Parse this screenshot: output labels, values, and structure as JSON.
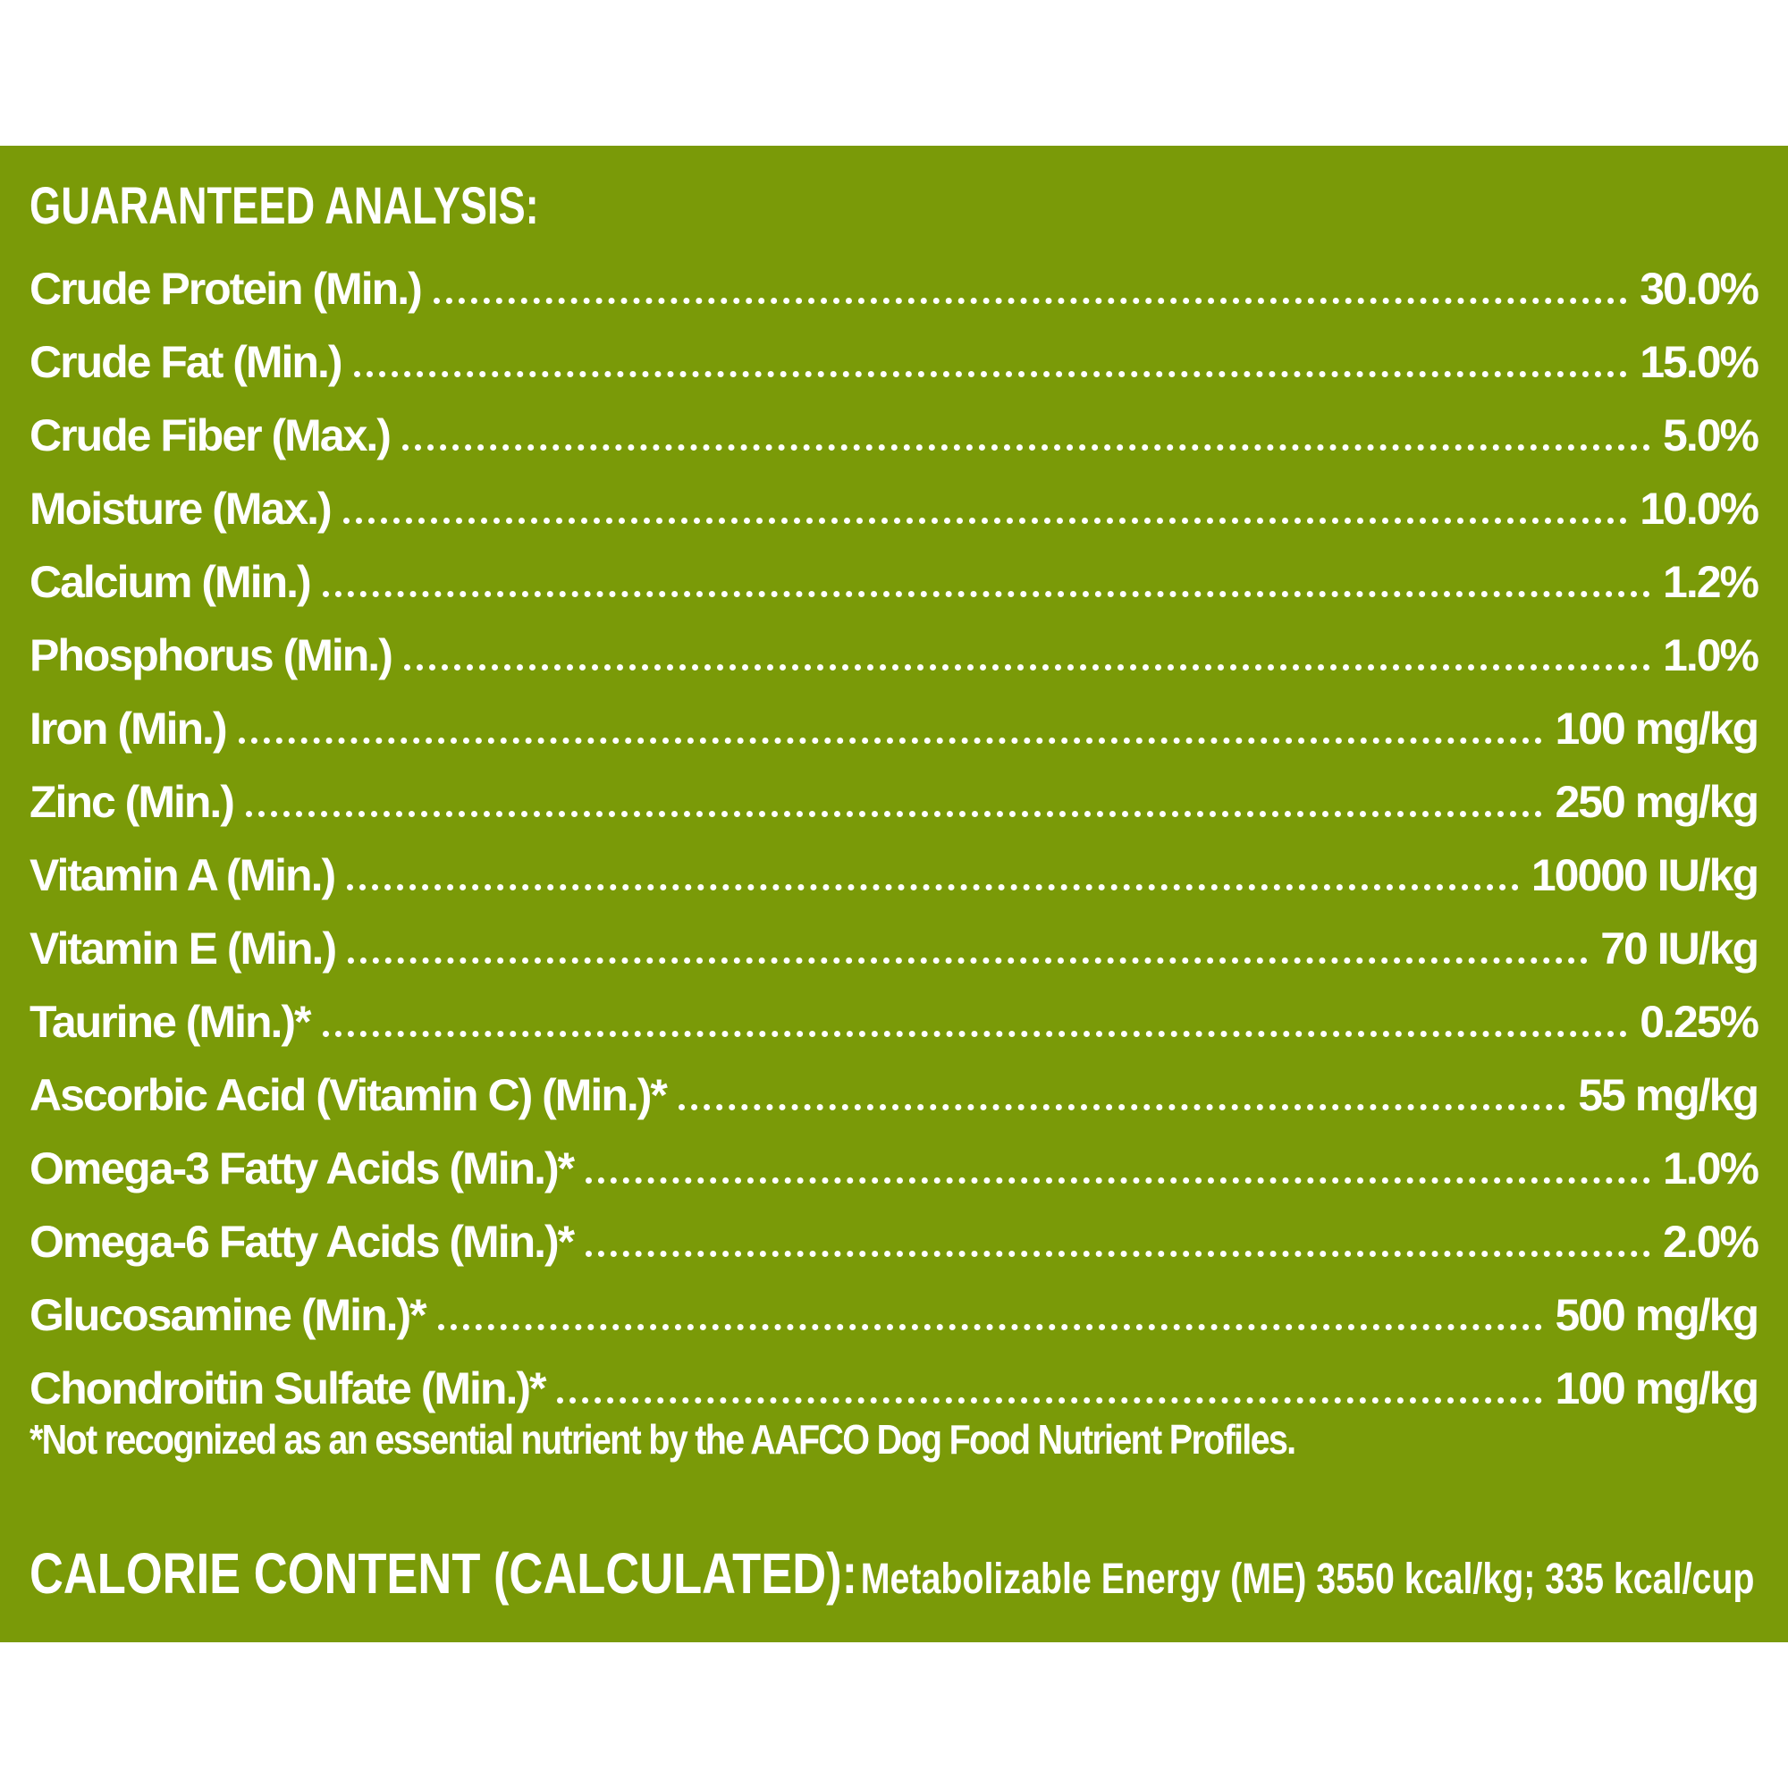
{
  "colors": {
    "panel_background": "#7a9a08",
    "text": "#ffffff",
    "page_background": "#ffffff"
  },
  "analysis": {
    "title": "GUARANTEED ANALYSIS:",
    "rows": [
      {
        "label": "Crude Protein (Min.)",
        "value": "30.0%"
      },
      {
        "label": "Crude Fat (Min.)",
        "value": "15.0%"
      },
      {
        "label": "Crude Fiber (Max.)",
        "value": "5.0%"
      },
      {
        "label": "Moisture (Max.)",
        "value": "10.0%"
      },
      {
        "label": "Calcium (Min.)",
        "value": "1.2%"
      },
      {
        "label": "Phosphorus (Min.)",
        "value": "1.0%"
      },
      {
        "label": "Iron (Min.)",
        "value": "100 mg/kg"
      },
      {
        "label": "Zinc (Min.)",
        "value": "250 mg/kg"
      },
      {
        "label": "Vitamin A (Min.)",
        "value": "10000 IU/kg"
      },
      {
        "label": "Vitamin E (Min.)",
        "value": "70 IU/kg"
      },
      {
        "label": "Taurine (Min.)*",
        "value": "0.25%"
      },
      {
        "label": "Ascorbic Acid (Vitamin C) (Min.)*",
        "value": "55 mg/kg"
      },
      {
        "label": "Omega-3 Fatty Acids (Min.)*",
        "value": "1.0%"
      },
      {
        "label": "Omega-6 Fatty Acids (Min.)*",
        "value": "2.0%"
      },
      {
        "label": "Glucosamine (Min.)*",
        "value": "500 mg/kg"
      },
      {
        "label": "Chondroitin Sulfate (Min.)*",
        "value": "100 mg/kg"
      }
    ],
    "footnote": "*Not recognized as an essential nutrient by the AAFCO Dog Food Nutrient Profiles."
  },
  "calorie": {
    "heading": "CALORIE CONTENT (CALCULATED):",
    "text": "Metabolizable Energy (ME) 3550 kcal/kg; 335 kcal/cup"
  }
}
